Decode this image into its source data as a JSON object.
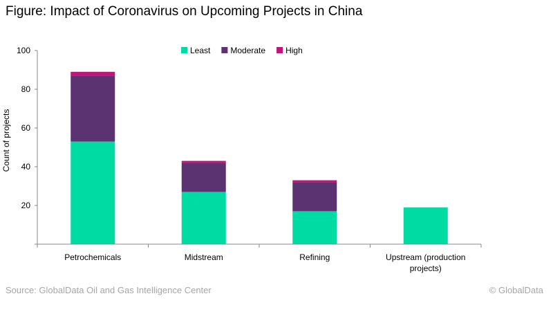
{
  "figure": {
    "title": "Figure: Impact of Coronavirus on Upcoming Projects in China",
    "source": "Source: GlobalData Oil and Gas Intelligence Center",
    "copyright": "© GlobalData"
  },
  "chart_data": {
    "type": "bar",
    "stacked": true,
    "categories": [
      "Petrochemicals",
      "Midstream",
      "Refining",
      "Upstream (production projects)"
    ],
    "category_lines": [
      [
        "Petrochemicals"
      ],
      [
        "Midstream"
      ],
      [
        "Refining"
      ],
      [
        "Upstream (production",
        "projects)"
      ]
    ],
    "series": [
      {
        "name": "Least",
        "color": "#00dba4",
        "values": [
          53,
          27,
          17,
          19
        ]
      },
      {
        "name": "Moderate",
        "color": "#5b3370",
        "values": [
          34,
          15,
          15,
          0
        ]
      },
      {
        "name": "High",
        "color": "#c0157a",
        "values": [
          2,
          1,
          1,
          0
        ]
      }
    ],
    "ylabel": "Count of projects",
    "xlabel": "",
    "ylim": [
      0,
      100
    ],
    "yticks": [
      20,
      40,
      60,
      80,
      100
    ],
    "legend_position": "top-center",
    "grid": false
  }
}
